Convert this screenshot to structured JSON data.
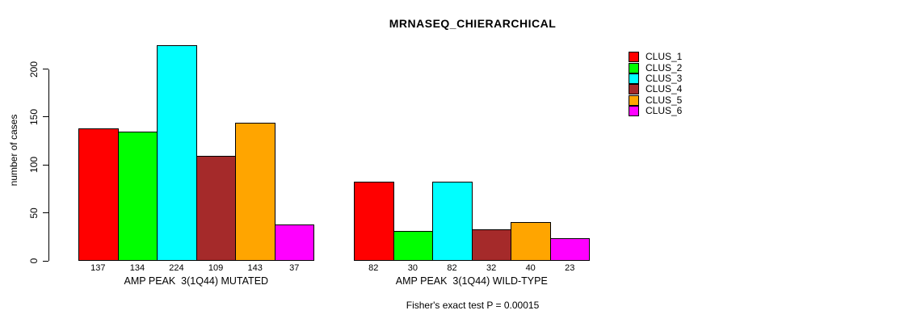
{
  "figure": {
    "background": "#FFFFFF",
    "axis_color": "#000000"
  },
  "chart_data": {
    "type": "bar",
    "title": "MRNASEQ_CHIERARCHICAL",
    "ylabel": "number of cases",
    "xlabel": "",
    "ylim": [
      0,
      200
    ],
    "yticks": [
      0,
      50,
      100,
      150,
      200
    ],
    "grid": false,
    "legend_position": "top-right",
    "legend": [
      "CLUS_1",
      "CLUS_2",
      "CLUS_3",
      "CLUS_4",
      "CLUS_5",
      "CLUS_6"
    ],
    "colors": [
      "#FF0000",
      "#00FF00",
      "#00FFFF",
      "#A52A2A",
      "#FFA500",
      "#FF00FF"
    ],
    "categories": [
      "AMP PEAK  3(1Q44) MUTATED",
      "AMP PEAK  3(1Q44) WILD-TYPE"
    ],
    "series": [
      {
        "name": "CLUS_1",
        "values": [
          137,
          82
        ]
      },
      {
        "name": "CLUS_2",
        "values": [
          134,
          30
        ]
      },
      {
        "name": "CLUS_3",
        "values": [
          224,
          82
        ]
      },
      {
        "name": "CLUS_4",
        "values": [
          109,
          32
        ]
      },
      {
        "name": "CLUS_5",
        "values": [
          143,
          40
        ]
      },
      {
        "name": "CLUS_6",
        "values": [
          37,
          23
        ]
      }
    ],
    "groups": [
      {
        "label": "AMP PEAK  3(1Q44) MUTATED",
        "values": [
          137,
          134,
          224,
          109,
          143,
          37
        ]
      },
      {
        "label": "AMP PEAK  3(1Q44) WILD-TYPE",
        "values": [
          82,
          30,
          82,
          32,
          40,
          23
        ]
      }
    ],
    "bar_value_labels_shown": true,
    "footnote": "Fisher's exact test P = 0.00015"
  }
}
